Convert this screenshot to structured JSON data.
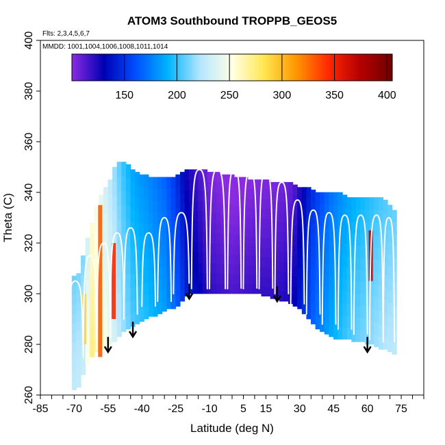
{
  "chart_data": {
    "type": "heatmap",
    "title": "ATOM3 Southbound TROPPB_GEOS5",
    "annotations": [
      "Flts: 2,3,4,5,6,7",
      "MMDD: 1001,1004,1006,1008,1011,1014"
    ],
    "xlabel": "Latitude (deg N)",
    "ylabel": "Theta (C)",
    "xlim": [
      -85,
      85
    ],
    "ylim": [
      260,
      400
    ],
    "x_ticks": [
      -85,
      -70,
      -55,
      -40,
      -25,
      -10,
      5,
      15,
      30,
      45,
      60,
      75
    ],
    "x_tick_labels": [
      "-85",
      "-70",
      "-55",
      "-40",
      "-25",
      "-10",
      "5",
      "15",
      "30",
      "45",
      "60",
      "75"
    ],
    "y_ticks": [
      260,
      280,
      300,
      320,
      340,
      360,
      380,
      400
    ],
    "y_tick_labels": [
      "260",
      "280",
      "300",
      "320",
      "340",
      "360",
      "380",
      "400"
    ],
    "colorbar": {
      "min": 100,
      "max": 405,
      "ticks": [
        150,
        200,
        250,
        300,
        350,
        400
      ],
      "tick_labels": [
        "150",
        "200",
        "250",
        "300",
        "350",
        "400"
      ],
      "colors": [
        "#8a2be2",
        "#0000b4",
        "#0050ff",
        "#00b4ff",
        "#b4e6ff",
        "#ffffe6",
        "#ffe650",
        "#ff9600",
        "#ff2800",
        "#b40000",
        "#6e0000"
      ]
    },
    "envelope": [
      [
        -71,
        262,
        307
      ],
      [
        -69,
        263,
        308
      ],
      [
        -67,
        268,
        315
      ],
      [
        -65,
        272,
        322
      ],
      [
        -63,
        275,
        328
      ],
      [
        -61,
        277,
        334
      ],
      [
        -59,
        278,
        339
      ],
      [
        -57,
        279,
        342
      ],
      [
        -55,
        280,
        345
      ],
      [
        -53,
        281,
        350
      ],
      [
        -51,
        283,
        352
      ],
      [
        -49,
        285,
        352
      ],
      [
        -47,
        286,
        351
      ],
      [
        -45,
        287,
        349
      ],
      [
        -43,
        288,
        348
      ],
      [
        -41,
        289,
        347
      ],
      [
        -39,
        290,
        347
      ],
      [
        -37,
        291,
        346
      ],
      [
        -35,
        291,
        346
      ],
      [
        -33,
        292,
        346
      ],
      [
        -31,
        293,
        346
      ],
      [
        -29,
        294,
        346
      ],
      [
        -27,
        294,
        346
      ],
      [
        -25,
        295,
        347
      ],
      [
        -23,
        297,
        348
      ],
      [
        -21,
        299,
        349
      ],
      [
        -19,
        300,
        349
      ],
      [
        -17,
        300,
        349
      ],
      [
        -15,
        300,
        349
      ],
      [
        -13,
        300,
        349
      ],
      [
        -11,
        300,
        348
      ],
      [
        -9,
        300,
        348
      ],
      [
        -7,
        300,
        348
      ],
      [
        -5,
        300,
        347
      ],
      [
        -3,
        300,
        347
      ],
      [
        -1,
        300,
        347
      ],
      [
        1,
        300,
        346
      ],
      [
        3,
        300,
        346
      ],
      [
        5,
        300,
        346
      ],
      [
        7,
        300,
        345
      ],
      [
        9,
        300,
        345
      ],
      [
        11,
        300,
        345
      ],
      [
        13,
        299,
        345
      ],
      [
        15,
        299,
        345
      ],
      [
        17,
        298,
        344
      ],
      [
        19,
        298,
        344
      ],
      [
        21,
        297,
        344
      ],
      [
        23,
        297,
        344
      ],
      [
        25,
        296,
        344
      ],
      [
        27,
        295,
        343
      ],
      [
        29,
        294,
        342
      ],
      [
        31,
        292,
        342
      ],
      [
        33,
        290,
        342
      ],
      [
        35,
        288,
        341
      ],
      [
        37,
        286,
        340
      ],
      [
        39,
        285,
        340
      ],
      [
        41,
        284,
        340
      ],
      [
        43,
        283,
        340
      ],
      [
        45,
        282,
        340
      ],
      [
        47,
        282,
        340
      ],
      [
        49,
        282,
        339
      ],
      [
        51,
        282,
        338
      ],
      [
        53,
        281,
        338
      ],
      [
        55,
        281,
        338
      ],
      [
        57,
        281,
        338
      ],
      [
        59,
        280,
        338
      ],
      [
        61,
        280,
        338
      ],
      [
        63,
        279,
        338
      ],
      [
        65,
        278,
        338
      ],
      [
        67,
        278,
        337
      ],
      [
        69,
        277,
        335
      ],
      [
        71,
        276,
        333
      ]
    ],
    "value_profile": [
      [
        -75,
        215
      ],
      [
        -66,
        222
      ],
      [
        -62,
        265
      ],
      [
        -58,
        250
      ],
      [
        -54,
        235
      ],
      [
        -49,
        212
      ],
      [
        -44,
        196
      ],
      [
        -38,
        188
      ],
      [
        -30,
        176
      ],
      [
        -25,
        160
      ],
      [
        -20,
        135
      ],
      [
        -10,
        112
      ],
      [
        0,
        105
      ],
      [
        10,
        110
      ],
      [
        20,
        112
      ],
      [
        27,
        118
      ],
      [
        35,
        155
      ],
      [
        43,
        178
      ],
      [
        50,
        192
      ],
      [
        55,
        200
      ],
      [
        60,
        205
      ],
      [
        66,
        212
      ],
      [
        75,
        220
      ]
    ],
    "hotspots": [
      {
        "lat": -58.5,
        "theta_min": 275,
        "theta_max": 335,
        "value": 330
      },
      {
        "lat": -52.5,
        "theta_min": 290,
        "theta_max": 320,
        "value": 345
      },
      {
        "lat": -65.5,
        "theta_min": 280,
        "theta_max": 300,
        "value": 290
      },
      {
        "lat": 61.5,
        "theta_min": 305,
        "theta_max": 325,
        "value": 370
      }
    ],
    "tropopause_arrows": [
      {
        "lat": -55,
        "theta": 277
      },
      {
        "lat": -44,
        "theta": 283
      },
      {
        "lat": -19,
        "theta": 298
      },
      {
        "lat": 20,
        "theta": 297
      },
      {
        "lat": 60,
        "theta": 277
      }
    ],
    "flight_tracks": [
      {
        "lat_start": -73,
        "lat_end": -66,
        "bottom": 275,
        "top": 305
      },
      {
        "lat_start": -66,
        "lat_end": -60,
        "bottom": 278,
        "top": 315
      },
      {
        "lat_start": -60,
        "lat_end": -54,
        "bottom": 283,
        "top": 320
      },
      {
        "lat_start": -54,
        "lat_end": -48,
        "bottom": 290,
        "top": 324
      },
      {
        "lat_start": -48,
        "lat_end": -42,
        "bottom": 292,
        "top": 326
      },
      {
        "lat_start": -40,
        "lat_end": -34,
        "bottom": 295,
        "top": 324
      },
      {
        "lat_start": -33,
        "lat_end": -27,
        "bottom": 297,
        "top": 330
      },
      {
        "lat_start": -26,
        "lat_end": -19,
        "bottom": 300,
        "top": 332
      },
      {
        "lat_start": -18,
        "lat_end": -11,
        "bottom": 302,
        "top": 349
      },
      {
        "lat_start": -10,
        "lat_end": -3,
        "bottom": 302,
        "top": 349
      },
      {
        "lat_start": -2,
        "lat_end": 4,
        "bottom": 302,
        "top": 349
      },
      {
        "lat_start": 5,
        "lat_end": 11,
        "bottom": 302,
        "top": 348
      },
      {
        "lat_start": 12,
        "lat_end": 18,
        "bottom": 302,
        "top": 348
      },
      {
        "lat_start": 19,
        "lat_end": 25,
        "bottom": 300,
        "top": 344
      },
      {
        "lat_start": 26,
        "lat_end": 32,
        "bottom": 296,
        "top": 337
      },
      {
        "lat_start": 33,
        "lat_end": 39,
        "bottom": 292,
        "top": 333
      },
      {
        "lat_start": 40,
        "lat_end": 46,
        "bottom": 288,
        "top": 332
      },
      {
        "lat_start": 47,
        "lat_end": 53,
        "bottom": 286,
        "top": 331
      },
      {
        "lat_start": 54,
        "lat_end": 60,
        "bottom": 284,
        "top": 331
      },
      {
        "lat_start": 61,
        "lat_end": 67,
        "bottom": 282,
        "top": 331
      },
      {
        "lat_start": 67,
        "lat_end": 72,
        "bottom": 281,
        "top": 330
      }
    ]
  }
}
